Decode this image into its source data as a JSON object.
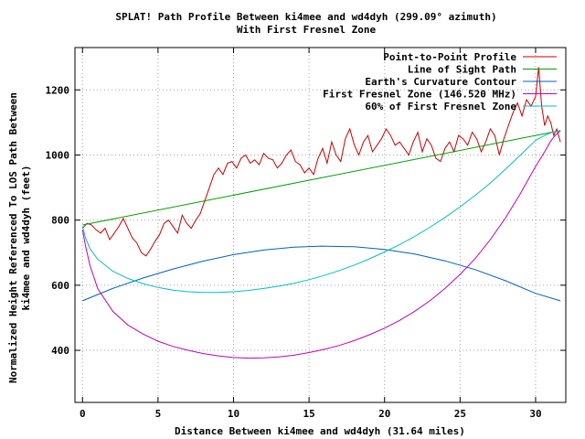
{
  "chart_data": {
    "type": "line",
    "title": "SPLAT! Path Profile Between ki4mee and wd4dyh (299.09° azimuth)",
    "subtitle": "With First Fresnel Zone",
    "xlabel": "Distance Between ki4mee and wd4dyh (31.64 miles)",
    "ylabel_line1": "Normalized Height Referenced To LOS Path Between",
    "ylabel_line2": "ki4mee and wd4dyh (feet)",
    "xlim": [
      -0.5,
      32
    ],
    "ylim": [
      240,
      1330
    ],
    "xticks": [
      0,
      5,
      10,
      15,
      20,
      25,
      30
    ],
    "yticks": [
      400,
      600,
      800,
      1000,
      1200
    ],
    "xtick_labels": [
      "0",
      "5",
      "10",
      "15",
      "20",
      "25",
      "30"
    ],
    "ytick_labels": [
      "400",
      "600",
      "800",
      "1000",
      "1200"
    ],
    "grid": true,
    "legend_position": "top-right",
    "series": [
      {
        "name": "Point-to-Point Profile",
        "color": "#cc0000",
        "x": [
          0,
          0.3,
          0.6,
          0.9,
          1.2,
          1.5,
          1.8,
          2.1,
          2.4,
          2.7,
          3.0,
          3.3,
          3.6,
          3.9,
          4.2,
          4.5,
          4.8,
          5.1,
          5.4,
          5.7,
          6.0,
          6.3,
          6.6,
          6.9,
          7.2,
          7.5,
          7.8,
          8.1,
          8.4,
          8.7,
          9.0,
          9.3,
          9.6,
          9.9,
          10.2,
          10.5,
          10.8,
          11.1,
          11.4,
          11.7,
          12.0,
          12.3,
          12.6,
          12.9,
          13.2,
          13.5,
          13.8,
          14.1,
          14.4,
          14.7,
          15.0,
          15.3,
          15.6,
          15.9,
          16.2,
          16.5,
          16.8,
          17.1,
          17.4,
          17.7,
          18.0,
          18.3,
          18.6,
          18.9,
          19.2,
          19.5,
          19.8,
          20.1,
          20.4,
          20.7,
          21.0,
          21.3,
          21.6,
          21.9,
          22.2,
          22.5,
          22.8,
          23.1,
          23.4,
          23.7,
          24.0,
          24.3,
          24.6,
          24.9,
          25.2,
          25.5,
          25.8,
          26.1,
          26.4,
          26.7,
          27.0,
          27.3,
          27.6,
          27.9,
          28.2,
          28.5,
          28.8,
          29.1,
          29.4,
          29.7,
          30.0,
          30.2,
          30.4,
          30.6,
          30.8,
          31.0,
          31.2,
          31.4,
          31.64
        ],
        "values": [
          775,
          790,
          785,
          770,
          760,
          775,
          740,
          760,
          780,
          805,
          775,
          745,
          730,
          700,
          690,
          710,
          735,
          755,
          790,
          800,
          780,
          760,
          815,
          790,
          775,
          800,
          820,
          860,
          900,
          940,
          960,
          940,
          975,
          980,
          960,
          990,
          1000,
          975,
          985,
          970,
          1005,
          990,
          985,
          960,
          975,
          1000,
          1015,
          980,
          970,
          945,
          960,
          940,
          990,
          1020,
          975,
          1040,
          1000,
          980,
          1050,
          1080,
          1030,
          1000,
          1040,
          1060,
          1010,
          1030,
          1050,
          1080,
          1060,
          1030,
          1040,
          1020,
          1000,
          1040,
          1070,
          1010,
          1050,
          1030,
          990,
          980,
          1020,
          1040,
          1010,
          1060,
          1050,
          1030,
          1070,
          1050,
          1010,
          1040,
          1080,
          1060,
          1000,
          1050,
          1090,
          1130,
          1160,
          1120,
          1170,
          1150,
          1180,
          1270,
          1150,
          1090,
          1120,
          1100,
          1060,
          1080,
          1040
        ]
      },
      {
        "name": "Line of Sight Path",
        "color": "#00a000",
        "x": [
          0,
          31.64
        ],
        "values": [
          785,
          1075
        ]
      },
      {
        "name": "Earth's Curvature Contour",
        "color": "#0060c0",
        "x": [
          0,
          2,
          4,
          6,
          8,
          10,
          12,
          14,
          15.82,
          18,
          20,
          22,
          24,
          26,
          28,
          30,
          31.64
        ],
        "values": [
          552,
          590,
          622,
          650,
          674,
          694,
          708,
          717,
          720,
          718,
          710,
          696,
          675,
          648,
          614,
          575,
          552
        ]
      },
      {
        "name": "First Fresnel Zone (146.520 MHz)",
        "color": "#c000c0",
        "x": [
          0,
          0.2,
          0.5,
          1,
          2,
          3,
          4,
          5,
          6,
          7,
          8,
          9,
          10,
          11,
          12,
          13,
          14,
          15,
          16,
          17,
          18,
          19,
          20,
          21,
          22,
          23,
          24,
          25,
          26,
          27,
          28,
          29,
          30,
          30.6,
          31,
          31.3,
          31.64
        ],
        "values": [
          770,
          720,
          660,
          590,
          520,
          478,
          450,
          428,
          412,
          400,
          390,
          383,
          378,
          376,
          377,
          380,
          385,
          393,
          403,
          415,
          430,
          448,
          468,
          492,
          520,
          552,
          590,
          633,
          682,
          740,
          806,
          882,
          965,
          1010,
          1043,
          1060,
          1075
        ]
      },
      {
        "name": "60% of First Fresnel Zone",
        "color": "#00c0c0",
        "x": [
          0,
          0.2,
          0.5,
          1,
          2,
          3,
          4,
          5,
          6,
          7,
          8,
          9,
          10,
          11,
          12,
          13,
          14,
          15,
          16,
          17,
          18,
          19,
          20,
          21,
          22,
          23,
          24,
          25,
          26,
          27,
          28,
          29,
          30,
          30.6,
          31,
          31.3,
          31.64
        ],
        "values": [
          780,
          745,
          712,
          680,
          643,
          621,
          605,
          593,
          585,
          580,
          578,
          578,
          580,
          584,
          590,
          597,
          606,
          617,
          630,
          645,
          662,
          681,
          702,
          725,
          750,
          778,
          808,
          841,
          876,
          914,
          956,
          1000,
          1045,
          1060,
          1068,
          1072,
          1075
        ]
      }
    ]
  }
}
